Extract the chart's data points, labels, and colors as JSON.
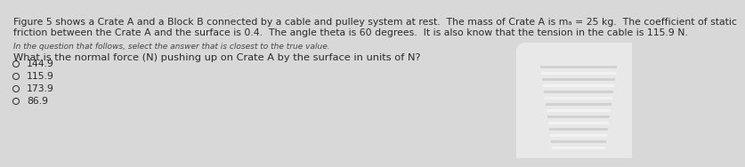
{
  "background_color": "#d8d8d8",
  "right_bright_color": "#f0f0f0",
  "paragraph_text_line1": "Figure 5 shows a Crate A and a Block B connected by a cable and pulley system at rest.  The mass of Crate A is mₐ = 25 kg.  The coefficient of static",
  "paragraph_text_line2": "friction between the Crate A and the surface is 0.4.  The angle theta is 60 degrees.  It is also know that the tension in the cable is 115.9 N.",
  "instruction_text": "In the question that follows, select the answer that is closest to the true value.",
  "question_text": "What is the normal force (N) pushing up on Crate A by the surface in units of N?",
  "options": [
    "144.9",
    "115.9",
    "173.9",
    "86.9"
  ],
  "font_color": "#2a2a2a",
  "instruction_color": "#444444",
  "para_fontsize": 7.8,
  "instruction_fontsize": 6.5,
  "question_fontsize": 8.2,
  "option_fontsize": 7.8
}
